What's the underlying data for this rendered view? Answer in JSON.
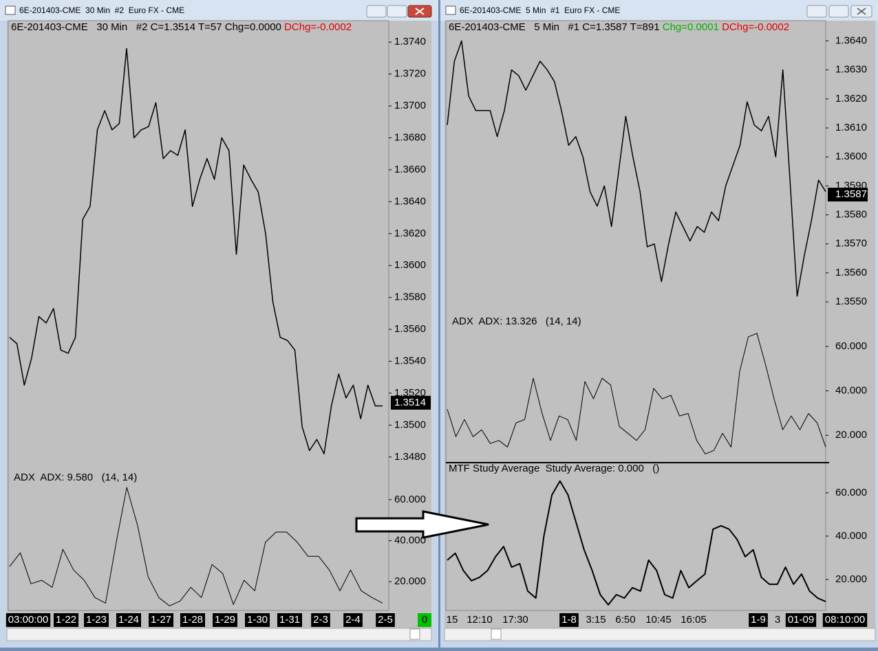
{
  "windows": [
    {
      "title": "6E-201403-CME  30 Min  #2  Euro FX - CME",
      "header": {
        "text": "6E-201403-CME   30 Min   #2 C=1.3514 T=57 Chg=0.0000 ",
        "dchg": "DChg=-0.0002"
      },
      "status": "0",
      "time_labels": [
        {
          "label": "03:00:00",
          "boxed": true
        },
        {
          "label": "1-22",
          "boxed": true
        },
        {
          "label": "1-23",
          "boxed": true
        },
        {
          "label": "1-24",
          "boxed": true
        },
        {
          "label": "1-27",
          "boxed": true
        },
        {
          "label": "1-28",
          "boxed": true
        },
        {
          "label": "1-29",
          "boxed": true
        },
        {
          "label": "1-30",
          "boxed": true
        },
        {
          "label": "1-31",
          "boxed": true
        },
        {
          "label": "2-3",
          "boxed": true
        },
        {
          "label": "2-4",
          "boxed": true
        },
        {
          "label": "2-5",
          "boxed": true
        }
      ],
      "chart_data": [
        {
          "type": "line",
          "color": "#000000",
          "values": [
            1.3555,
            1.3551,
            1.3525,
            1.3542,
            1.3568,
            1.3564,
            1.3573,
            1.3547,
            1.3545,
            1.3555,
            1.3629,
            1.3637,
            1.3685,
            1.3697,
            1.3685,
            1.3689,
            1.3736,
            1.368,
            1.3685,
            1.3687,
            1.3702,
            1.3667,
            1.3672,
            1.3669,
            1.3685,
            1.3637,
            1.3654,
            1.3667,
            1.3654,
            1.368,
            1.3672,
            1.3607,
            1.3663,
            1.3654,
            1.3646,
            1.362,
            1.3577,
            1.3555,
            1.3553,
            1.3547,
            1.3499,
            1.3484,
            1.3491,
            1.3482,
            1.3512,
            1.3532,
            1.3517,
            1.3525,
            1.3504,
            1.3525,
            1.3512,
            1.3512
          ],
          "ylim": [
            1.347,
            1.375
          ],
          "yticks": [
            {
              "value": 1.348,
              "label": "1.3480"
            },
            {
              "value": 1.35,
              "label": "1.3500"
            },
            {
              "value": 1.352,
              "label": "1.3520"
            },
            {
              "value": 1.354,
              "label": "1.3540"
            },
            {
              "value": 1.356,
              "label": "1.3560"
            },
            {
              "value": 1.358,
              "label": "1.3580"
            },
            {
              "value": 1.36,
              "label": "1.3600"
            },
            {
              "value": 1.362,
              "label": "1.3620"
            },
            {
              "value": 1.364,
              "label": "1.3640"
            },
            {
              "value": 1.366,
              "label": "1.3660"
            },
            {
              "value": 1.368,
              "label": "1.3680"
            },
            {
              "value": 1.37,
              "label": "1.3700"
            },
            {
              "value": 1.372,
              "label": "1.3720"
            },
            {
              "value": 1.374,
              "label": "1.3740"
            }
          ],
          "last": {
            "value": 1.3514,
            "label": "1.3514"
          }
        },
        {
          "type": "line",
          "title": "ADX  ADX: 9.580   (14, 14)",
          "color": "#000000",
          "values": [
            27.4,
            34.1,
            19,
            20.7,
            17.3,
            35.8,
            25.7,
            20.7,
            12.3,
            9.6,
            39.2,
            66,
            47.6,
            22.4,
            12.3,
            8.2,
            10.6,
            17.3,
            12.3,
            28.4,
            24,
            8.9,
            20.7,
            15.6,
            39.2,
            44.2,
            44.2,
            39.2,
            32.4,
            32.4,
            25.7,
            15.6,
            25.7,
            15.6,
            12.3,
            9.6
          ],
          "ylim": [
            6,
            69
          ],
          "yticks": [
            {
              "value": 20,
              "label": "20.000"
            },
            {
              "value": 40,
              "label": "40.000"
            },
            {
              "value": 60,
              "label": "60.000"
            }
          ]
        }
      ]
    },
    {
      "title": "6E-201403-CME  5 Min  #1  Euro FX - CME",
      "header": {
        "text": "6E-201403-CME   5 Min   #1 C=1.3587 T=891 ",
        "chg": "Chg=0.0001",
        "dchg": " DChg=-0.0002"
      },
      "time_labels": [
        {
          "label": "15",
          "boxed": false
        },
        {
          "label": "12:10",
          "boxed": false
        },
        {
          "label": "17:30",
          "boxed": false
        },
        {
          "label": "1-8",
          "boxed": true
        },
        {
          "label": "3:15",
          "boxed": false
        },
        {
          "label": "6:50",
          "boxed": false
        },
        {
          "label": "10:45",
          "boxed": false
        },
        {
          "label": "16:05",
          "boxed": false
        },
        {
          "label": "1-9",
          "boxed": true
        },
        {
          "label": "3",
          "boxed": false
        },
        {
          "label": "01-09",
          "boxed": true
        },
        {
          "label": "08:10:00",
          "boxed": true
        }
      ],
      "chart_data": [
        {
          "type": "line",
          "color": "#000000",
          "values": [
            1.3611,
            1.3633,
            1.364,
            1.3621,
            1.3616,
            1.3616,
            1.3616,
            1.3607,
            1.3616,
            1.363,
            1.3628,
            1.3623,
            1.3628,
            1.3633,
            1.363,
            1.3626,
            1.3616,
            1.3604,
            1.3607,
            1.36,
            1.3588,
            1.3583,
            1.359,
            1.3576,
            1.3595,
            1.3614,
            1.36,
            1.3588,
            1.3569,
            1.357,
            1.3557,
            1.357,
            1.3581,
            1.3576,
            1.3571,
            1.3576,
            1.3574,
            1.3581,
            1.3578,
            1.359,
            1.3597,
            1.3604,
            1.3619,
            1.3611,
            1.3609,
            1.3614,
            1.36,
            1.363,
            1.3592,
            1.3552,
            1.3566,
            1.3578,
            1.3592,
            1.3588
          ],
          "ylim": [
            1.3546,
            1.3647
          ],
          "yticks": [
            {
              "value": 1.355,
              "label": "1.3550"
            },
            {
              "value": 1.356,
              "label": "1.3560"
            },
            {
              "value": 1.357,
              "label": "1.3570"
            },
            {
              "value": 1.358,
              "label": "1.3580"
            },
            {
              "value": 1.359,
              "label": "1.3590"
            },
            {
              "value": 1.36,
              "label": "1.3600"
            },
            {
              "value": 1.361,
              "label": "1.3610"
            },
            {
              "value": 1.362,
              "label": "1.3620"
            },
            {
              "value": 1.363,
              "label": "1.3630"
            },
            {
              "value": 1.364,
              "label": "1.3640"
            }
          ],
          "last": {
            "value": 1.3587,
            "label": "1.3587"
          }
        },
        {
          "type": "line",
          "title": "ADX  ADX: 13.326   (14, 14)",
          "color": "#000000",
          "values": [
            31.8,
            19.4,
            27.1,
            19.4,
            22.5,
            16.3,
            17.7,
            14.7,
            25.6,
            27.1,
            45.7,
            30.2,
            17.7,
            28.7,
            27.1,
            17.7,
            44.2,
            36.4,
            45.7,
            42.6,
            24,
            20.9,
            17.7,
            22.5,
            41.1,
            36.4,
            38,
            28.7,
            29.8,
            17.7,
            11.6,
            13.2,
            20.9,
            14.7,
            48.8,
            64.3,
            65.9,
            51.9,
            36.4,
            22.5,
            28.7,
            22.5,
            29.8,
            25.6,
            14.7
          ],
          "ylim": [
            8,
            73.6
          ],
          "yticks": [
            {
              "value": 20,
              "label": "20.000"
            },
            {
              "value": 40,
              "label": "40.000"
            },
            {
              "value": 60,
              "label": "60.000"
            }
          ]
        },
        {
          "type": "line",
          "title": "MTF Study Average  Study Average: 0.000   ()",
          "color": "#000000",
          "values": [
            28.9,
            32.1,
            24.1,
            19.4,
            21,
            24.1,
            30.5,
            35.2,
            25.7,
            27.3,
            14.6,
            11.4,
            40,
            59,
            65.4,
            59,
            46.3,
            33.7,
            24.1,
            13,
            8.3,
            13,
            11.4,
            16.2,
            14.6,
            28.9,
            24.1,
            13,
            11.4,
            24.1,
            16.2,
            19.4,
            22.5,
            43.2,
            44.8,
            43.2,
            38.4,
            30.5,
            33.7,
            21,
            17.8,
            17.8,
            25.7,
            17.8,
            22.5,
            14.6,
            11.4,
            9.8
          ],
          "ylim": [
            5.7,
            73.6
          ],
          "yticks": [
            {
              "value": 20,
              "label": "20.000"
            },
            {
              "value": 40,
              "label": "40.000"
            },
            {
              "value": 60,
              "label": "60.000"
            }
          ]
        }
      ]
    }
  ]
}
